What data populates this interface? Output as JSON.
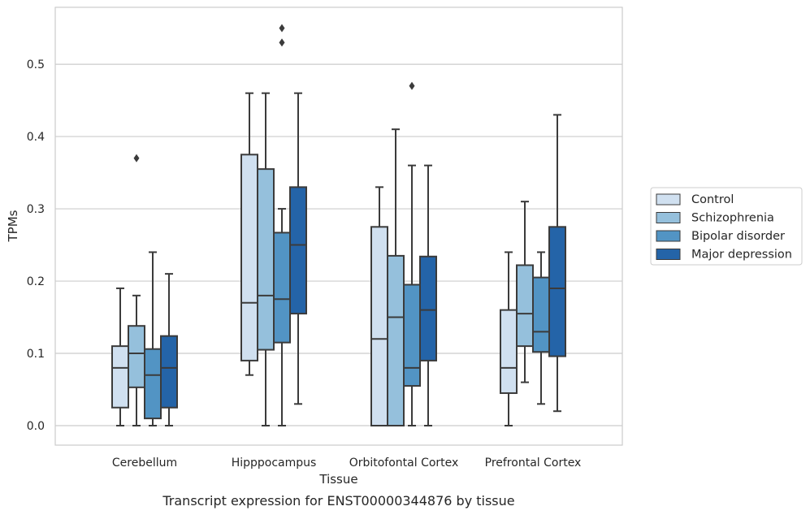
{
  "caption": "Transcript expression for ENST00000344876 by tissue",
  "chart_data": {
    "type": "box",
    "title": "",
    "xlabel": "Tissue",
    "ylabel": "TPMs",
    "ylim": [
      -0.027,
      0.58
    ],
    "yticks": [
      0.0,
      0.1,
      0.2,
      0.3,
      0.4,
      0.5
    ],
    "ytick_labels": [
      "0.0",
      "0.1",
      "0.2",
      "0.3",
      "0.4",
      "0.5"
    ],
    "grid": "horizontal",
    "legend_position": "right",
    "categories": [
      "Cerebellum",
      "Hipppocampus",
      "Orbitofontal Cortex",
      "Prefrontal Cortex"
    ],
    "series": [
      {
        "name": "Control",
        "color": "#d0e0f0",
        "boxes": [
          {
            "whislo": 0.0,
            "q1": 0.025,
            "med": 0.08,
            "q3": 0.11,
            "whishi": 0.19,
            "fliers": []
          },
          {
            "whislo": 0.07,
            "q1": 0.09,
            "med": 0.17,
            "q3": 0.375,
            "whishi": 0.46,
            "fliers": []
          },
          {
            "whislo": 0.0,
            "q1": 0.0,
            "med": 0.12,
            "q3": 0.275,
            "whishi": 0.33,
            "fliers": []
          },
          {
            "whislo": 0.0,
            "q1": 0.045,
            "med": 0.08,
            "q3": 0.16,
            "whishi": 0.24,
            "fliers": []
          }
        ]
      },
      {
        "name": "Schizophrenia",
        "color": "#95c0dc",
        "boxes": [
          {
            "whislo": 0.0,
            "q1": 0.053,
            "med": 0.1,
            "q3": 0.138,
            "whishi": 0.18,
            "fliers": [
              0.37
            ]
          },
          {
            "whislo": 0.0,
            "q1": 0.105,
            "med": 0.18,
            "q3": 0.355,
            "whishi": 0.46,
            "fliers": []
          },
          {
            "whislo": 0.0,
            "q1": 0.0,
            "med": 0.15,
            "q3": 0.235,
            "whishi": 0.41,
            "fliers": []
          },
          {
            "whislo": 0.06,
            "q1": 0.11,
            "med": 0.155,
            "q3": 0.222,
            "whishi": 0.31,
            "fliers": []
          }
        ]
      },
      {
        "name": "Bipolar disorder",
        "color": "#5294c4",
        "boxes": [
          {
            "whislo": 0.0,
            "q1": 0.01,
            "med": 0.07,
            "q3": 0.106,
            "whishi": 0.24,
            "fliers": []
          },
          {
            "whislo": 0.0,
            "q1": 0.115,
            "med": 0.175,
            "q3": 0.267,
            "whishi": 0.3,
            "fliers": [
              0.53,
              0.55
            ]
          },
          {
            "whislo": 0.0,
            "q1": 0.055,
            "med": 0.08,
            "q3": 0.195,
            "whishi": 0.36,
            "fliers": [
              0.47
            ]
          },
          {
            "whislo": 0.03,
            "q1": 0.102,
            "med": 0.13,
            "q3": 0.205,
            "whishi": 0.24,
            "fliers": []
          }
        ]
      },
      {
        "name": "Major depression",
        "color": "#2464a8",
        "boxes": [
          {
            "whislo": 0.0,
            "q1": 0.025,
            "med": 0.08,
            "q3": 0.124,
            "whishi": 0.21,
            "fliers": []
          },
          {
            "whislo": 0.03,
            "q1": 0.155,
            "med": 0.25,
            "q3": 0.33,
            "whishi": 0.46,
            "fliers": []
          },
          {
            "whislo": 0.0,
            "q1": 0.09,
            "med": 0.16,
            "q3": 0.234,
            "whishi": 0.36,
            "fliers": []
          },
          {
            "whislo": 0.02,
            "q1": 0.096,
            "med": 0.19,
            "q3": 0.275,
            "whishi": 0.43,
            "fliers": []
          }
        ]
      }
    ]
  }
}
